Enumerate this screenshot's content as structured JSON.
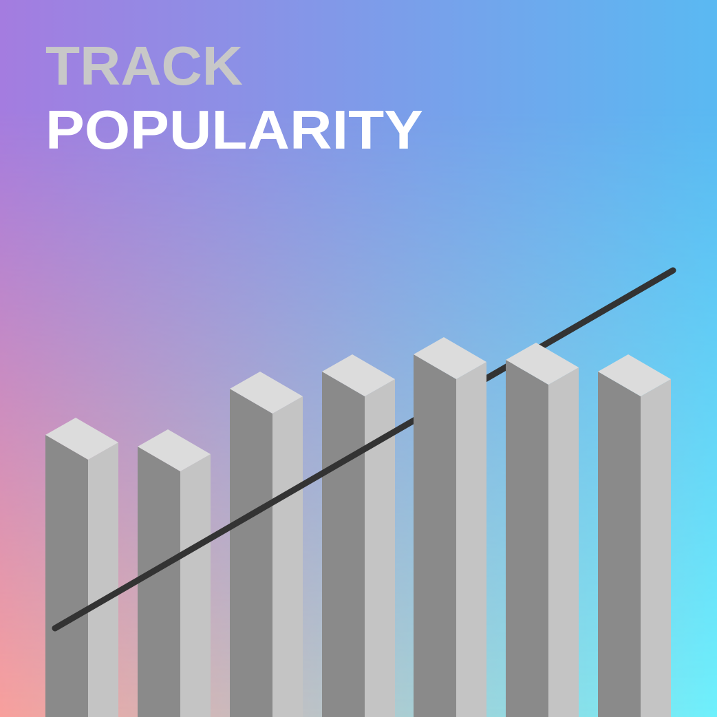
{
  "header": {
    "title_line1": "TRACK",
    "title_line2": "POPULARITY"
  }
}
